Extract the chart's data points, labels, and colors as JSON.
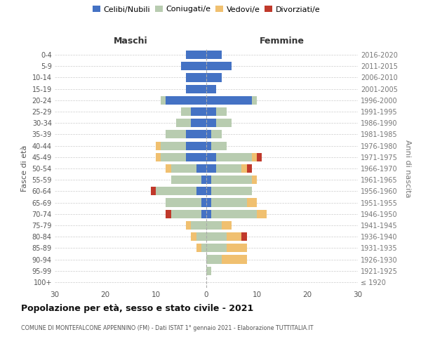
{
  "age_groups": [
    "100+",
    "95-99",
    "90-94",
    "85-89",
    "80-84",
    "75-79",
    "70-74",
    "65-69",
    "60-64",
    "55-59",
    "50-54",
    "45-49",
    "40-44",
    "35-39",
    "30-34",
    "25-29",
    "20-24",
    "15-19",
    "10-14",
    "5-9",
    "0-4"
  ],
  "birth_years": [
    "≤ 1920",
    "1921-1925",
    "1926-1930",
    "1931-1935",
    "1936-1940",
    "1941-1945",
    "1946-1950",
    "1951-1955",
    "1956-1960",
    "1961-1965",
    "1966-1970",
    "1971-1975",
    "1976-1980",
    "1981-1985",
    "1986-1990",
    "1991-1995",
    "1996-2000",
    "2001-2005",
    "2006-2010",
    "2011-2015",
    "2016-2020"
  ],
  "males": {
    "celibi": [
      0,
      0,
      0,
      0,
      0,
      0,
      1,
      1,
      2,
      1,
      2,
      4,
      4,
      4,
      3,
      3,
      8,
      4,
      4,
      5,
      4
    ],
    "coniugati": [
      0,
      0,
      0,
      1,
      2,
      3,
      6,
      7,
      8,
      6,
      5,
      5,
      5,
      4,
      3,
      2,
      1,
      0,
      0,
      0,
      0
    ],
    "vedovi": [
      0,
      0,
      0,
      1,
      1,
      1,
      0,
      0,
      0,
      0,
      1,
      1,
      1,
      0,
      0,
      0,
      0,
      0,
      0,
      0,
      0
    ],
    "divorziati": [
      0,
      0,
      0,
      0,
      0,
      0,
      1,
      0,
      1,
      0,
      0,
      0,
      0,
      0,
      0,
      0,
      0,
      0,
      0,
      0,
      0
    ]
  },
  "females": {
    "nubili": [
      0,
      0,
      0,
      0,
      0,
      0,
      1,
      1,
      1,
      1,
      2,
      2,
      1,
      1,
      2,
      2,
      9,
      2,
      3,
      5,
      3
    ],
    "coniugate": [
      0,
      1,
      3,
      4,
      4,
      3,
      9,
      7,
      8,
      8,
      5,
      7,
      3,
      2,
      3,
      2,
      1,
      0,
      0,
      0,
      0
    ],
    "vedove": [
      0,
      0,
      5,
      4,
      3,
      2,
      2,
      2,
      0,
      1,
      1,
      1,
      0,
      0,
      0,
      0,
      0,
      0,
      0,
      0,
      0
    ],
    "divorziate": [
      0,
      0,
      0,
      0,
      1,
      0,
      0,
      0,
      0,
      0,
      1,
      1,
      0,
      0,
      0,
      0,
      0,
      0,
      0,
      0,
      0
    ]
  },
  "colors": {
    "celibi_nubili": "#4472C4",
    "coniugati": "#B8CCB0",
    "vedovi": "#F0C070",
    "divorziati": "#C0392B"
  },
  "title": "Popolazione per età, sesso e stato civile - 2021",
  "subtitle": "COMUNE DI MONTEFALCONE APPENNINO (FM) - Dati ISTAT 1° gennaio 2021 - Elaborazione TUTTITALIA.IT",
  "xlabel_left": "Maschi",
  "xlabel_right": "Femmine",
  "ylabel_left": "Fasce di età",
  "ylabel_right": "Anni di nascita",
  "xlim": 30,
  "background_color": "#ffffff",
  "grid_color": "#cccccc"
}
